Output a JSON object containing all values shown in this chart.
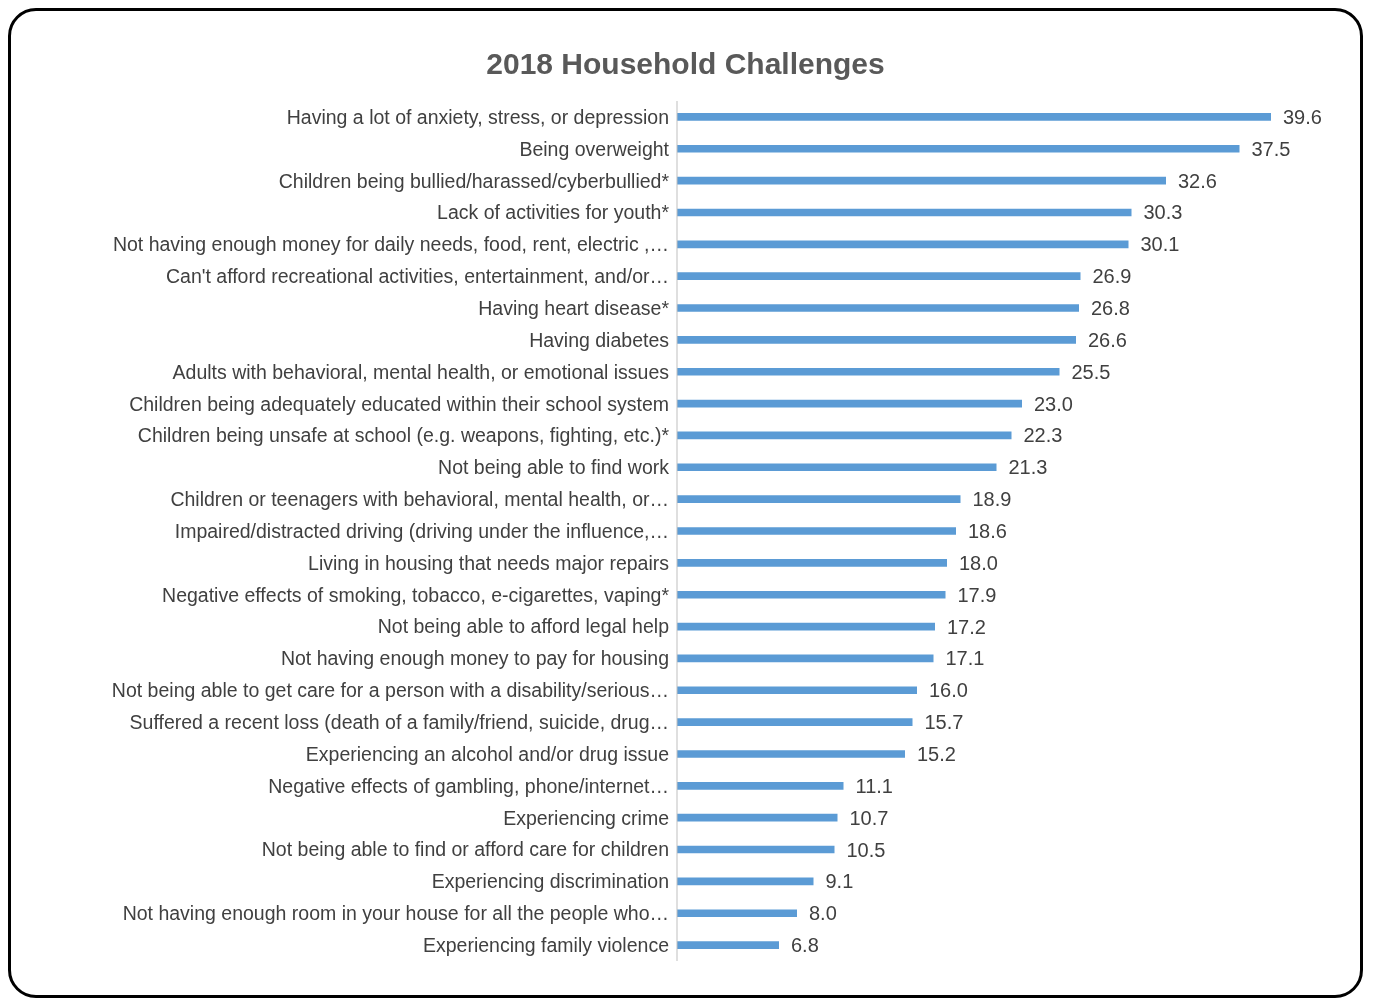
{
  "chart_data": {
    "type": "bar",
    "orientation": "horizontal",
    "title": "2018 Household Challenges",
    "categories": [
      "Having a lot of anxiety, stress, or depression",
      "Being overweight",
      "Children being bullied/harassed/cyberbullied*",
      "Lack of activities for youth*",
      "Not having enough money for daily needs, food, rent, electric ,…",
      "Can't afford recreational activities, entertainment, and/or…",
      "Having heart disease*",
      "Having diabetes",
      "Adults with behavioral, mental health, or emotional issues",
      "Children being adequately educated within their school system",
      "Children being unsafe at school (e.g. weapons, fighting, etc.)*",
      "Not being able to find work",
      "Children or teenagers with behavioral, mental health, or…",
      "Impaired/distracted driving (driving under the influence,…",
      "Living in housing that needs major repairs",
      "Negative effects of smoking, tobacco, e-cigarettes, vaping*",
      "Not being able to afford legal help",
      "Not having enough money to pay for housing",
      "Not being able to get care for a person with a disability/serious…",
      "Suffered a recent loss (death of a family/friend, suicide, drug…",
      "Experiencing an alcohol and/or drug issue",
      "Negative effects of gambling, phone/internet…",
      "Experiencing crime",
      "Not being able to find or afford care for children",
      "Experiencing discrimination",
      "Not having enough room in your house for all the people who…",
      "Experiencing family violence"
    ],
    "values": [
      39.6,
      37.5,
      32.6,
      30.3,
      30.1,
      26.9,
      26.8,
      26.6,
      25.5,
      23.0,
      22.3,
      21.3,
      18.9,
      18.6,
      18.0,
      17.9,
      17.2,
      17.1,
      16.0,
      15.7,
      15.2,
      11.1,
      10.7,
      10.5,
      9.1,
      8.0,
      6.8
    ],
    "value_labels": [
      "39.6",
      "37.5",
      "32.6",
      "30.3",
      "30.1",
      "26.9",
      "26.8",
      "26.6",
      "25.5",
      "23.0",
      "22.3",
      "21.3",
      "18.9",
      "18.6",
      "18.0",
      "17.9",
      "17.2",
      "17.1",
      "16.0",
      "15.7",
      "15.2",
      "11.1",
      "10.7",
      "10.5",
      "9.1",
      "8.0",
      "6.8"
    ],
    "color": "#5b9bd5",
    "tick_labels": "y"
  }
}
